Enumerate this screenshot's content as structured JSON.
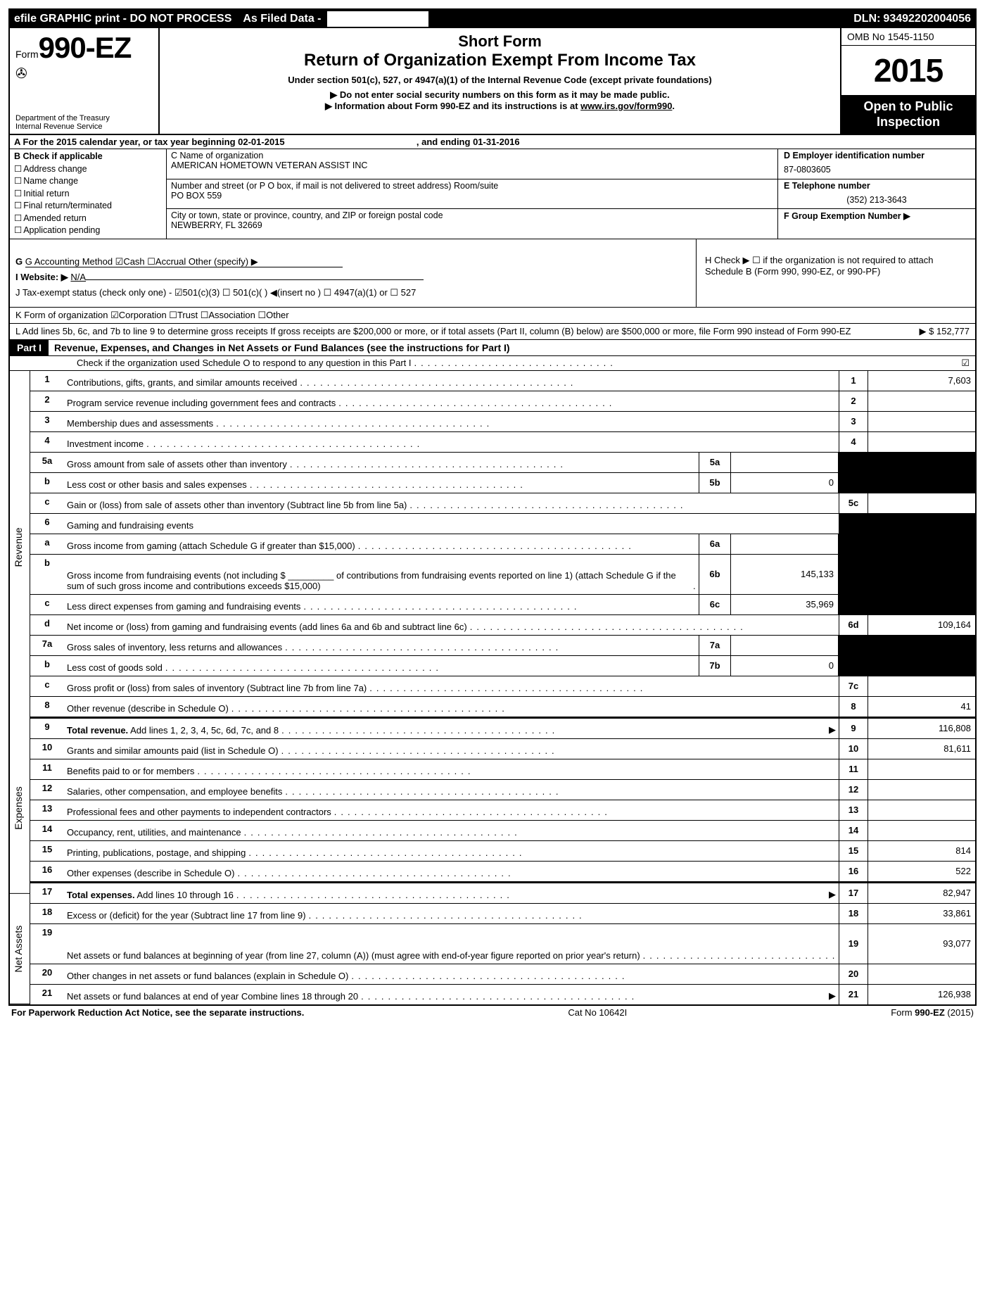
{
  "topbar": {
    "efile": "efile GRAPHIC print - DO NOT PROCESS",
    "asfiled": "As Filed Data -",
    "dln_label": "DLN:",
    "dln": "93492202004056"
  },
  "header": {
    "form_prefix": "Form",
    "form_no": "990-EZ",
    "dept1": "Department of the Treasury",
    "dept2": "Internal Revenue Service",
    "short": "Short Form",
    "title": "Return of Organization Exempt From Income Tax",
    "under": "Under section 501(c), 527, or 4947(a)(1) of the Internal Revenue Code (except private foundations)",
    "warn1": "▶ Do not enter social security numbers on this form as it may be made public.",
    "warn2_pre": "▶ Information about Form 990-EZ and its instructions is at ",
    "warn2_link": "www.irs.gov/form990",
    "warn2_post": ".",
    "omb": "OMB No 1545-1150",
    "year": "2015",
    "open1": "Open to Public",
    "open2": "Inspection"
  },
  "rowA": {
    "label": "A  For the 2015 calendar year, or tax year beginning ",
    "begin": "02-01-2015",
    "mid": ", and ending ",
    "end": "01-31-2016"
  },
  "colB": {
    "heading": "B  Check if applicable",
    "opts": [
      "Address change",
      "Name change",
      "Initial return",
      "Final return/terminated",
      "Amended return",
      "Application pending"
    ]
  },
  "cellC": {
    "name_lbl": "C Name of organization",
    "name": "AMERICAN HOMETOWN VETERAN ASSIST INC",
    "addr_lbl": "Number and street (or P  O  box, if mail is not delivered to street address) Room/suite",
    "addr": "PO BOX 559",
    "city_lbl": "City or town, state or province, country, and ZIP or foreign postal code",
    "city": "NEWBERRY, FL  32669"
  },
  "cellDEF": {
    "d_lbl": "D Employer identification number",
    "d_val": "87-0803605",
    "e_lbl": "E Telephone number",
    "e_val": "(352) 213-3643",
    "f_lbl": "F Group Exemption Number  ▶"
  },
  "ghij": {
    "g": "G Accounting Method   ☑Cash  ☐Accrual   Other (specify) ▶",
    "i_lbl": "I Website: ▶ ",
    "i_val": "N/A",
    "j": "J Tax-exempt status (check only one) - ☑501(c)(3)  ☐ 501(c)(  ) ◀(insert no ) ☐ 4947(a)(1) or ☐ 527",
    "h": "H  Check ▶ ☐ if the organization is not required to attach Schedule B (Form 990, 990-EZ, or 990-PF)"
  },
  "rowK": "K Form of organization   ☑Corporation  ☐Trust  ☐Association  ☐Other",
  "rowL": {
    "text": "L Add lines 5b, 6c, and 7b to line 9 to determine gross receipts  If gross receipts are $200,000 or more, or if total assets (Part II, column (B) below) are $500,000 or more, file Form 990 instead of Form 990-EZ",
    "val": "▶ $ 152,777"
  },
  "partI": {
    "label": "Part I",
    "desc": "Revenue, Expenses, and Changes in Net Assets or Fund Balances (see the instructions for Part I)",
    "schedO": "Check if the organization used Schedule O to respond to any question in this Part I",
    "checked": "☑"
  },
  "sides": {
    "rev": "Revenue",
    "exp": "Expenses",
    "net": "Net Assets"
  },
  "lines": [
    {
      "n": "1",
      "label": "Contributions, gifts, grants, and similar amounts received",
      "rn": "1",
      "rv": "7,603"
    },
    {
      "n": "2",
      "label": "Program service revenue including government fees and contracts",
      "rn": "2",
      "rv": ""
    },
    {
      "n": "3",
      "label": "Membership dues and assessments",
      "rn": "3",
      "rv": ""
    },
    {
      "n": "4",
      "label": "Investment income",
      "rn": "4",
      "rv": ""
    },
    {
      "n": "5a",
      "label": "Gross amount from sale of assets other than inventory",
      "mn": "5a",
      "mv": "",
      "shade_right": true
    },
    {
      "n": "b",
      "label": "Less  cost or other basis and sales expenses",
      "mn": "5b",
      "mv": "0",
      "shade_right": true
    },
    {
      "n": "c",
      "label": "Gain or (loss) from sale of assets other than inventory (Subtract line 5b from line 5a)",
      "rn": "5c",
      "rv": ""
    },
    {
      "n": "6",
      "label": "Gaming and fundraising events",
      "no_cols": true,
      "shade_right": true
    },
    {
      "n": "a",
      "label": "Gross income from gaming (attach Schedule G if greater than $15,000)",
      "mn": "6a",
      "mv": "",
      "shade_right": true
    },
    {
      "n": "b",
      "label": "Gross income from fundraising events (not including $ _________ of contributions from fundraising events reported on line 1) (attach Schedule G if the sum of such gross income and contributions exceeds $15,000)",
      "mn": "6b",
      "mv": "145,133",
      "shade_right": true,
      "tall": true
    },
    {
      "n": "c",
      "label": "Less  direct expenses from gaming and fundraising events",
      "mn": "6c",
      "mv": "35,969",
      "shade_right": true
    },
    {
      "n": "d",
      "label": "Net income or (loss) from gaming and fundraising events (add lines 6a and 6b and subtract line 6c)",
      "rn": "6d",
      "rv": "109,164"
    },
    {
      "n": "7a",
      "label": "Gross sales of inventory, less returns and allowances",
      "mn": "7a",
      "mv": "",
      "shade_right": true
    },
    {
      "n": "b",
      "label": "Less  cost of goods sold",
      "mn": "7b",
      "mv": "0",
      "shade_right": true
    },
    {
      "n": "c",
      "label": "Gross profit or (loss) from sales of inventory (Subtract line 7b from line 7a)",
      "rn": "7c",
      "rv": ""
    },
    {
      "n": "8",
      "label": "Other revenue (describe in Schedule O)",
      "rn": "8",
      "rv": "41"
    },
    {
      "n": "9",
      "label": "Total revenue. Add lines 1, 2, 3, 4, 5c, 6d, 7c, and 8",
      "rn": "9",
      "rv": "116,808",
      "bold": true,
      "arrow": true
    },
    {
      "n": "10",
      "label": "Grants and similar amounts paid (list in Schedule O)",
      "rn": "10",
      "rv": "81,611"
    },
    {
      "n": "11",
      "label": "Benefits paid to or for members",
      "rn": "11",
      "rv": ""
    },
    {
      "n": "12",
      "label": "Salaries, other compensation, and employee benefits",
      "rn": "12",
      "rv": ""
    },
    {
      "n": "13",
      "label": "Professional fees and other payments to independent contractors",
      "rn": "13",
      "rv": ""
    },
    {
      "n": "14",
      "label": "Occupancy, rent, utilities, and maintenance",
      "rn": "14",
      "rv": ""
    },
    {
      "n": "15",
      "label": "Printing, publications, postage, and shipping",
      "rn": "15",
      "rv": "814"
    },
    {
      "n": "16",
      "label": "Other expenses (describe in Schedule O)",
      "rn": "16",
      "rv": "522"
    },
    {
      "n": "17",
      "label": "Total expenses. Add lines 10 through 16",
      "rn": "17",
      "rv": "82,947",
      "bold": true,
      "arrow": true
    },
    {
      "n": "18",
      "label": "Excess or (deficit) for the year (Subtract line 17 from line 9)",
      "rn": "18",
      "rv": "33,861"
    },
    {
      "n": "19",
      "label": "Net assets or fund balances at beginning of year (from line 27, column (A)) (must agree with end-of-year figure reported on prior year's return)",
      "rn": "19",
      "rv": "93,077",
      "tall": true
    },
    {
      "n": "20",
      "label": "Other changes in net assets or fund balances (explain in Schedule O)",
      "rn": "20",
      "rv": ""
    },
    {
      "n": "21",
      "label": "Net assets or fund balances at end of year  Combine lines 18 through 20",
      "rn": "21",
      "rv": "126,938",
      "arrow": true
    }
  ],
  "footer": {
    "left": "For Paperwork Reduction Act Notice, see the separate instructions.",
    "mid": "Cat No  10642I",
    "right": "Form 990-EZ (2015)"
  }
}
